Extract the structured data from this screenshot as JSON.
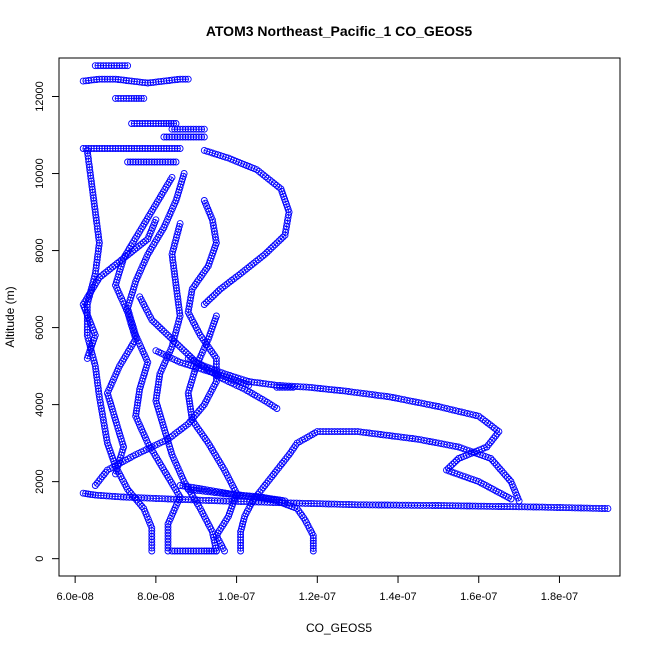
{
  "chart_data": {
    "type": "scatter",
    "title": "ATOM3 Northeast_Pacific_1 CO_GEOS5",
    "xlabel": "CO_GEOS5",
    "ylabel": "Altitude (m)",
    "xlim": [
      5.6e-08,
      1.95e-07
    ],
    "ylim": [
      -450,
      13000
    ],
    "x_ticks": [
      6e-08,
      8e-08,
      1e-07,
      1.2e-07,
      1.4e-07,
      1.6e-07,
      1.8e-07
    ],
    "x_tick_labels": [
      "6.0e-08",
      "8.0e-08",
      "1.0e-07",
      "1.2e-07",
      "1.4e-07",
      "1.6e-07",
      "1.8e-07"
    ],
    "y_ticks": [
      0,
      2000,
      4000,
      6000,
      8000,
      10000,
      12000
    ],
    "y_tick_labels": [
      "0",
      "2000",
      "4000",
      "6000",
      "8000",
      "10000",
      "12000"
    ],
    "marker": "open-circle",
    "color": "#0000ff",
    "grid": false,
    "legend": "none",
    "series": [
      {
        "x": [
          7.9e-08,
          7.9e-08,
          7.7e-08,
          7.3e-08,
          7e-08,
          6.8e-08,
          6.7e-08,
          6.6e-08,
          6.5e-08,
          6.3e-08,
          6.3e-08,
          6.5e-08,
          6.6e-08,
          6.5e-08,
          6.4e-08,
          6.3e-08
        ],
        "y": [
          200,
          800,
          1300,
          1800,
          2400,
          3000,
          3600,
          4200,
          5000,
          5800,
          6600,
          7400,
          8200,
          9000,
          9800,
          10600
        ]
      },
      {
        "x": [
          1.01e-07,
          1.01e-07,
          1.02e-07,
          1.04e-07,
          1.07e-07,
          1.1e-07,
          1.13e-07,
          1.15e-07,
          1.2e-07,
          1.3e-07,
          1.45e-07,
          1.55e-07,
          1.63e-07,
          1.68e-07,
          1.7e-07
        ],
        "y": [
          200,
          700,
          1100,
          1500,
          1900,
          2300,
          2700,
          3000,
          3300,
          3300,
          3100,
          2900,
          2600,
          2000,
          1500
        ]
      },
      {
        "x": [
          1.19e-07,
          1.19e-07,
          1.17e-07,
          1.15e-07,
          1.1e-07,
          1.05e-07
        ],
        "y": [
          200,
          600,
          1000,
          1300,
          1500,
          1600
        ]
      },
      {
        "x": [
          6.2e-08,
          6.5e-08,
          7.2e-08,
          8.3e-08,
          9.6e-08,
          1.12e-07,
          1.3e-07,
          1.5e-07,
          1.62e-07,
          1.75e-07,
          1.92e-07
        ],
        "y": [
          1700,
          1650,
          1600,
          1550,
          1500,
          1450,
          1400,
          1380,
          1360,
          1340,
          1300
        ]
      },
      {
        "x": [
          8.8e-08,
          9.2e-08,
          9.7e-08,
          1.03e-07,
          1.1e-07,
          1.18e-07,
          1.27e-07,
          1.38e-07,
          1.5e-07,
          1.6e-07,
          1.65e-07,
          1.62e-07,
          1.55e-07,
          1.52e-07,
          1.6e-07,
          1.68e-07
        ],
        "y": [
          5200,
          5000,
          4800,
          4600,
          4500,
          4450,
          4350,
          4200,
          3950,
          3700,
          3300,
          2900,
          2600,
          2300,
          2000,
          1550
        ]
      },
      {
        "x": [
          1.1e-07,
          1.14e-07
        ],
        "y": [
          4450,
          4450
        ]
      },
      {
        "x": [
          9.2e-08,
          9.8e-08,
          1.05e-07,
          1.11e-07,
          1.13e-07,
          1.12e-07,
          1.07e-07,
          1.01e-07,
          9.6e-08,
          9.2e-08
        ],
        "y": [
          10600,
          10400,
          10100,
          9600,
          9000,
          8400,
          7900,
          7400,
          7000,
          6600
        ]
      },
      {
        "x": [
          6.5e-08,
          6.8e-08,
          7.5e-08,
          8.3e-08,
          8.8e-08,
          9.2e-08,
          9.5e-08,
          9.5e-08,
          9.1e-08,
          8.8e-08,
          8.9e-08,
          9.3e-08,
          9.5e-08,
          9.4e-08,
          9.2e-08
        ],
        "y": [
          1900,
          2300,
          2700,
          3100,
          3500,
          4000,
          4600,
          5200,
          5800,
          6400,
          7000,
          7600,
          8200,
          8800,
          9300
        ]
      },
      {
        "x": [
          8.3e-08,
          8.3e-08,
          8.6e-08,
          8.2e-08,
          7.8e-08,
          7.5e-08,
          7.6e-08,
          7.8e-08,
          7.5e-08,
          7.3e-08,
          7.5e-08,
          7.8e-08,
          8.2e-08,
          8.5e-08,
          8.7e-08
        ],
        "y": [
          200,
          900,
          1600,
          2300,
          3000,
          3700,
          4400,
          5100,
          5800,
          6500,
          7200,
          7900,
          8600,
          9300,
          10000
        ]
      },
      {
        "x": [
          9.5e-08,
          9.4e-08,
          9.1e-08,
          8.7e-08,
          8.4e-08,
          8.2e-08,
          8e-08,
          8.1e-08,
          8.4e-08,
          8.6e-08,
          8.5e-08,
          8.4e-08,
          8.6e-08
        ],
        "y": [
          200,
          700,
          1300,
          2000,
          2700,
          3400,
          4100,
          4800,
          5500,
          6300,
          7100,
          7900,
          8700
        ]
      },
      {
        "x": [
          9.7e-08,
          9.5e-08,
          9.8e-08,
          1e-07,
          9.7e-08,
          9.3e-08,
          8.9e-08,
          8.8e-08,
          9e-08,
          9.3e-08,
          9.5e-08
        ],
        "y": [
          200,
          600,
          1100,
          1700,
          2300,
          3000,
          3600,
          4300,
          5000,
          5700,
          6300
        ]
      },
      {
        "x": [
          7e-08,
          7.2e-08,
          7e-08,
          6.8e-08,
          7.1e-08,
          7.5e-08,
          7.3e-08,
          7e-08,
          7.2e-08,
          7.6e-08,
          8e-08,
          8.4e-08
        ],
        "y": [
          2200,
          2900,
          3600,
          4300,
          5000,
          5700,
          6400,
          7100,
          7800,
          8500,
          9200,
          9900
        ]
      },
      {
        "x": [
          7.6e-08,
          7.9e-08,
          8.5e-08,
          9e-08,
          9.6e-08,
          1.02e-07,
          1.07e-07,
          1.1e-07
        ],
        "y": [
          6800,
          6200,
          5600,
          5100,
          4700,
          4400,
          4100,
          3900
        ]
      },
      {
        "x": [
          6.3e-08,
          6.5e-08,
          6.2e-08,
          6.6e-08,
          7.2e-08,
          7.8e-08,
          8e-08
        ],
        "y": [
          5200,
          5800,
          6600,
          7300,
          7800,
          8300,
          8800
        ]
      },
      {
        "x": [
          8e-08,
          8.6e-08,
          9.2e-08,
          9.8e-08,
          1.03e-07
        ],
        "y": [
          5400,
          5100,
          4900,
          4700,
          4500
        ]
      },
      {
        "x": [
          6.2e-08,
          6.6e-08,
          7e-08,
          7.4e-08,
          7.8e-08,
          8.2e-08,
          8.6e-08,
          8.8e-08
        ],
        "y": [
          12400,
          12450,
          12450,
          12400,
          12350,
          12400,
          12450,
          12450
        ]
      },
      {
        "x": [
          6.5e-08,
          6.9e-08,
          7.3e-08
        ],
        "y": [
          12800,
          12800,
          12800
        ]
      },
      {
        "x": [
          7e-08,
          7.4e-08,
          7.7e-08
        ],
        "y": [
          11950,
          11950,
          11950
        ]
      },
      {
        "x": [
          7.4e-08,
          7.8e-08,
          8.2e-08,
          8.5e-08
        ],
        "y": [
          11300,
          11300,
          11300,
          11300
        ]
      },
      {
        "x": [
          8.4e-08,
          8.8e-08,
          9.2e-08
        ],
        "y": [
          11150,
          11150,
          11150
        ]
      },
      {
        "x": [
          8.2e-08,
          8.6e-08,
          9e-08,
          9.2e-08
        ],
        "y": [
          10950,
          10950,
          10950,
          10950
        ]
      },
      {
        "x": [
          6.2e-08,
          6.6e-08,
          7e-08,
          7.4e-08,
          7.8e-08,
          8.2e-08,
          8.6e-08
        ],
        "y": [
          10650,
          10650,
          10650,
          10650,
          10650,
          10650,
          10650
        ]
      },
      {
        "x": [
          7.3e-08,
          7.7e-08,
          8.1e-08,
          8.5e-08
        ],
        "y": [
          10300,
          10300,
          10300,
          10300
        ]
      },
      {
        "x": [
          8.4e-08,
          8.8e-08,
          9.2e-08,
          9.5e-08
        ],
        "y": [
          200,
          200,
          200,
          200
        ]
      },
      {
        "x": [
          8.8e-08,
          9.6e-08,
          1.06e-07,
          1.12e-07,
          1e-07,
          9.2e-08,
          8.6e-08
        ],
        "y": [
          1800,
          1700,
          1600,
          1500,
          1650,
          1800,
          1900
        ]
      }
    ]
  }
}
